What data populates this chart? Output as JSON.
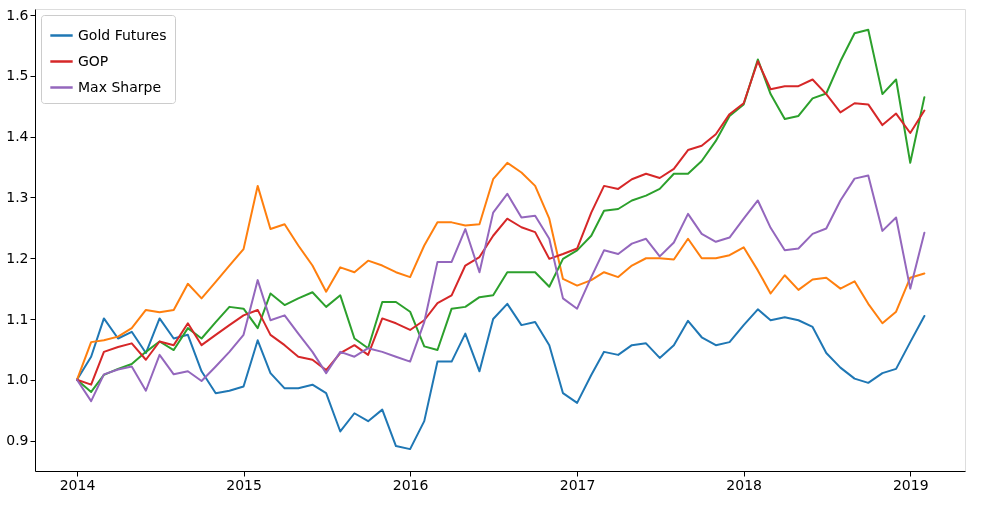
{
  "chart_data": {
    "type": "line",
    "legend": "top left",
    "grid": false,
    "x": [
      "2014-01",
      "2014-02",
      "2014-03",
      "2014-04",
      "2014-05",
      "2014-06",
      "2014-07",
      "2014-08",
      "2014-09",
      "2014-10",
      "2014-11",
      "2014-12",
      "2015-01",
      "2015-02",
      "2015-03",
      "2015-04",
      "2015-05",
      "2015-06",
      "2015-07",
      "2015-08",
      "2015-09",
      "2015-10",
      "2015-11",
      "2015-12",
      "2016-01",
      "2016-02",
      "2016-03",
      "2016-04",
      "2016-05",
      "2016-06",
      "2016-07",
      "2016-08",
      "2016-09",
      "2016-10",
      "2016-11",
      "2016-12",
      "2017-01",
      "2017-02",
      "2017-03",
      "2017-04",
      "2017-05",
      "2017-06",
      "2017-07",
      "2017-08",
      "2017-09",
      "2017-10",
      "2017-11",
      "2017-12",
      "2018-01",
      "2018-02",
      "2018-03",
      "2018-04",
      "2018-05",
      "2018-06",
      "2018-07",
      "2018-08",
      "2018-09",
      "2018-10",
      "2018-11",
      "2018-12",
      "2019-01",
      "2019-02"
    ],
    "xlim": [
      "2013-10",
      "2019-05"
    ],
    "xticks": [
      "2014",
      "2015",
      "2016",
      "2017",
      "2018",
      "2019"
    ],
    "ylim": [
      0.85,
      1.61
    ],
    "yticks": [
      0.9,
      {
        "value": 1,
        "label": "1.0"
      },
      1.1,
      1.2,
      1.3,
      1.4,
      1.5,
      1.6
    ],
    "series": [
      {
        "name": "Gold Futures",
        "color": "#1f77b4",
        "values": [
          1.0,
          1.038,
          1.101,
          1.068,
          1.079,
          1.044,
          1.101,
          1.068,
          1.074,
          1.014,
          0.978,
          0.982,
          0.989,
          1.065,
          1.011,
          0.986,
          0.986,
          0.992,
          0.978,
          0.915,
          0.945,
          0.932,
          0.951,
          0.891,
          0.886,
          0.932,
          1.03,
          1.03,
          1.076,
          1.014,
          1.1,
          1.125,
          1.09,
          1.095,
          1.057,
          0.978,
          0.962,
          1.008,
          1.046,
          1.041,
          1.057,
          1.06,
          1.036,
          1.057,
          1.097,
          1.07,
          1.057,
          1.062,
          1.09,
          1.116,
          1.098,
          1.103,
          1.098,
          1.087,
          1.044,
          1.02,
          1.002,
          0.995,
          1.011,
          1.018,
          1.062,
          1.105
        ]
      },
      {
        "color": "#ff7f0e",
        "values": [
          1.0,
          1.062,
          1.065,
          1.071,
          1.085,
          1.115,
          1.111,
          1.115,
          1.158,
          1.134,
          1.161,
          1.188,
          1.215,
          1.319,
          1.248,
          1.256,
          1.221,
          1.188,
          1.145,
          1.185,
          1.177,
          1.196,
          1.188,
          1.177,
          1.169,
          1.221,
          1.259,
          1.259,
          1.254,
          1.256,
          1.33,
          1.357,
          1.341,
          1.319,
          1.265,
          1.166,
          1.155,
          1.164,
          1.177,
          1.169,
          1.188,
          1.2,
          1.2,
          1.198,
          1.232,
          1.2,
          1.2,
          1.205,
          1.218,
          1.18,
          1.142,
          1.172,
          1.148,
          1.165,
          1.168,
          1.15,
          1.162,
          1.125,
          1.093,
          1.112,
          1.168,
          1.175
        ]
      },
      {
        "color": "#2ca02c",
        "values": [
          1.0,
          0.98,
          1.008,
          1.018,
          1.026,
          1.046,
          1.063,
          1.049,
          1.085,
          1.068,
          1.095,
          1.12,
          1.117,
          1.085,
          1.142,
          1.123,
          1.134,
          1.144,
          1.12,
          1.139,
          1.068,
          1.052,
          1.128,
          1.128,
          1.112,
          1.055,
          1.049,
          1.117,
          1.12,
          1.136,
          1.139,
          1.177,
          1.177,
          1.177,
          1.153,
          1.199,
          1.213,
          1.237,
          1.278,
          1.281,
          1.295,
          1.303,
          1.314,
          1.339,
          1.339,
          1.36,
          1.393,
          1.434,
          1.453,
          1.527,
          1.47,
          1.429,
          1.434,
          1.463,
          1.471,
          1.524,
          1.57,
          1.576,
          1.47,
          1.494,
          1.357,
          1.465
        ]
      },
      {
        "name": "GOP",
        "color": "#d62728",
        "values": [
          1.0,
          0.992,
          1.046,
          1.054,
          1.06,
          1.033,
          1.063,
          1.057,
          1.093,
          1.057,
          1.074,
          1.09,
          1.106,
          1.115,
          1.074,
          1.057,
          1.038,
          1.033,
          1.016,
          1.044,
          1.057,
          1.041,
          1.101,
          1.093,
          1.082,
          1.098,
          1.126,
          1.139,
          1.188,
          1.202,
          1.237,
          1.265,
          1.251,
          1.243,
          1.199,
          1.207,
          1.216,
          1.275,
          1.319,
          1.314,
          1.33,
          1.339,
          1.332,
          1.347,
          1.378,
          1.385,
          1.404,
          1.437,
          1.455,
          1.524,
          1.478,
          1.483,
          1.483,
          1.494,
          1.47,
          1.44,
          1.455,
          1.453,
          1.419,
          1.438,
          1.406,
          1.443
        ]
      },
      {
        "name": "Max Sharpe",
        "color": "#9467bd",
        "values": [
          1.0,
          0.965,
          1.009,
          1.017,
          1.022,
          0.982,
          1.041,
          1.009,
          1.014,
          0.998,
          1.022,
          1.046,
          1.074,
          1.164,
          1.098,
          1.106,
          1.076,
          1.046,
          1.011,
          1.046,
          1.038,
          1.052,
          1.046,
          1.038,
          1.03,
          1.095,
          1.194,
          1.194,
          1.248,
          1.177,
          1.275,
          1.306,
          1.267,
          1.27,
          1.232,
          1.134,
          1.117,
          1.169,
          1.213,
          1.207,
          1.224,
          1.232,
          1.203,
          1.226,
          1.273,
          1.24,
          1.227,
          1.234,
          1.265,
          1.295,
          1.25,
          1.213,
          1.216,
          1.24,
          1.249,
          1.295,
          1.331,
          1.336,
          1.245,
          1.267,
          1.15,
          1.242
        ]
      }
    ]
  }
}
